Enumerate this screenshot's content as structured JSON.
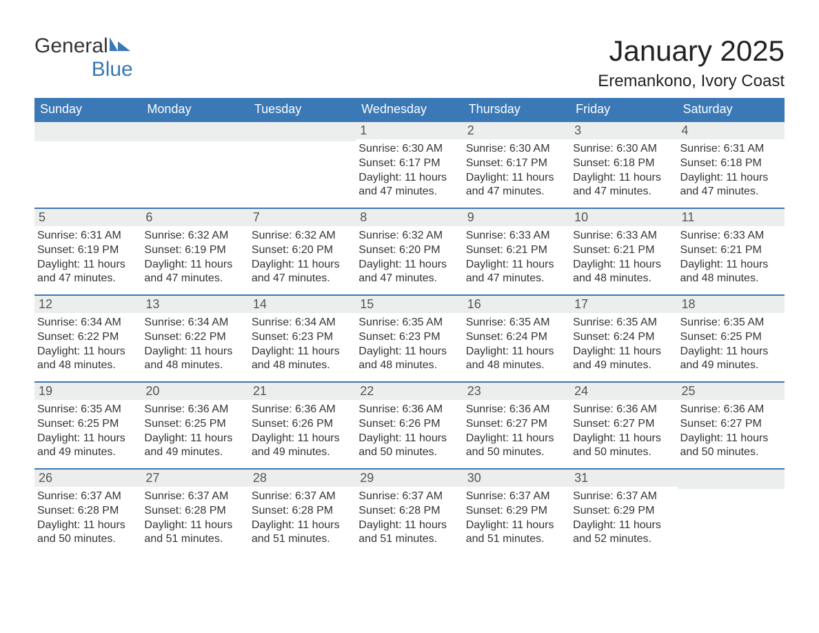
{
  "logo": {
    "text1": "General",
    "text2": "Blue"
  },
  "title": "January 2025",
  "subtitle": "Eremankono, Ivory Coast",
  "colors": {
    "brand": "#3a78b6",
    "daybar": "#eceded",
    "text": "#333333",
    "bg": "#ffffff"
  },
  "weekdays": [
    "Sunday",
    "Monday",
    "Tuesday",
    "Wednesday",
    "Thursday",
    "Friday",
    "Saturday"
  ],
  "weeks": [
    [
      null,
      null,
      null,
      {
        "n": "1",
        "sunrise": "Sunrise: 6:30 AM",
        "sunset": "Sunset: 6:17 PM",
        "dl1": "Daylight: 11 hours",
        "dl2": "and 47 minutes."
      },
      {
        "n": "2",
        "sunrise": "Sunrise: 6:30 AM",
        "sunset": "Sunset: 6:17 PM",
        "dl1": "Daylight: 11 hours",
        "dl2": "and 47 minutes."
      },
      {
        "n": "3",
        "sunrise": "Sunrise: 6:30 AM",
        "sunset": "Sunset: 6:18 PM",
        "dl1": "Daylight: 11 hours",
        "dl2": "and 47 minutes."
      },
      {
        "n": "4",
        "sunrise": "Sunrise: 6:31 AM",
        "sunset": "Sunset: 6:18 PM",
        "dl1": "Daylight: 11 hours",
        "dl2": "and 47 minutes."
      }
    ],
    [
      {
        "n": "5",
        "sunrise": "Sunrise: 6:31 AM",
        "sunset": "Sunset: 6:19 PM",
        "dl1": "Daylight: 11 hours",
        "dl2": "and 47 minutes."
      },
      {
        "n": "6",
        "sunrise": "Sunrise: 6:32 AM",
        "sunset": "Sunset: 6:19 PM",
        "dl1": "Daylight: 11 hours",
        "dl2": "and 47 minutes."
      },
      {
        "n": "7",
        "sunrise": "Sunrise: 6:32 AM",
        "sunset": "Sunset: 6:20 PM",
        "dl1": "Daylight: 11 hours",
        "dl2": "and 47 minutes."
      },
      {
        "n": "8",
        "sunrise": "Sunrise: 6:32 AM",
        "sunset": "Sunset: 6:20 PM",
        "dl1": "Daylight: 11 hours",
        "dl2": "and 47 minutes."
      },
      {
        "n": "9",
        "sunrise": "Sunrise: 6:33 AM",
        "sunset": "Sunset: 6:21 PM",
        "dl1": "Daylight: 11 hours",
        "dl2": "and 47 minutes."
      },
      {
        "n": "10",
        "sunrise": "Sunrise: 6:33 AM",
        "sunset": "Sunset: 6:21 PM",
        "dl1": "Daylight: 11 hours",
        "dl2": "and 48 minutes."
      },
      {
        "n": "11",
        "sunrise": "Sunrise: 6:33 AM",
        "sunset": "Sunset: 6:21 PM",
        "dl1": "Daylight: 11 hours",
        "dl2": "and 48 minutes."
      }
    ],
    [
      {
        "n": "12",
        "sunrise": "Sunrise: 6:34 AM",
        "sunset": "Sunset: 6:22 PM",
        "dl1": "Daylight: 11 hours",
        "dl2": "and 48 minutes."
      },
      {
        "n": "13",
        "sunrise": "Sunrise: 6:34 AM",
        "sunset": "Sunset: 6:22 PM",
        "dl1": "Daylight: 11 hours",
        "dl2": "and 48 minutes."
      },
      {
        "n": "14",
        "sunrise": "Sunrise: 6:34 AM",
        "sunset": "Sunset: 6:23 PM",
        "dl1": "Daylight: 11 hours",
        "dl2": "and 48 minutes."
      },
      {
        "n": "15",
        "sunrise": "Sunrise: 6:35 AM",
        "sunset": "Sunset: 6:23 PM",
        "dl1": "Daylight: 11 hours",
        "dl2": "and 48 minutes."
      },
      {
        "n": "16",
        "sunrise": "Sunrise: 6:35 AM",
        "sunset": "Sunset: 6:24 PM",
        "dl1": "Daylight: 11 hours",
        "dl2": "and 48 minutes."
      },
      {
        "n": "17",
        "sunrise": "Sunrise: 6:35 AM",
        "sunset": "Sunset: 6:24 PM",
        "dl1": "Daylight: 11 hours",
        "dl2": "and 49 minutes."
      },
      {
        "n": "18",
        "sunrise": "Sunrise: 6:35 AM",
        "sunset": "Sunset: 6:25 PM",
        "dl1": "Daylight: 11 hours",
        "dl2": "and 49 minutes."
      }
    ],
    [
      {
        "n": "19",
        "sunrise": "Sunrise: 6:35 AM",
        "sunset": "Sunset: 6:25 PM",
        "dl1": "Daylight: 11 hours",
        "dl2": "and 49 minutes."
      },
      {
        "n": "20",
        "sunrise": "Sunrise: 6:36 AM",
        "sunset": "Sunset: 6:25 PM",
        "dl1": "Daylight: 11 hours",
        "dl2": "and 49 minutes."
      },
      {
        "n": "21",
        "sunrise": "Sunrise: 6:36 AM",
        "sunset": "Sunset: 6:26 PM",
        "dl1": "Daylight: 11 hours",
        "dl2": "and 49 minutes."
      },
      {
        "n": "22",
        "sunrise": "Sunrise: 6:36 AM",
        "sunset": "Sunset: 6:26 PM",
        "dl1": "Daylight: 11 hours",
        "dl2": "and 50 minutes."
      },
      {
        "n": "23",
        "sunrise": "Sunrise: 6:36 AM",
        "sunset": "Sunset: 6:27 PM",
        "dl1": "Daylight: 11 hours",
        "dl2": "and 50 minutes."
      },
      {
        "n": "24",
        "sunrise": "Sunrise: 6:36 AM",
        "sunset": "Sunset: 6:27 PM",
        "dl1": "Daylight: 11 hours",
        "dl2": "and 50 minutes."
      },
      {
        "n": "25",
        "sunrise": "Sunrise: 6:36 AM",
        "sunset": "Sunset: 6:27 PM",
        "dl1": "Daylight: 11 hours",
        "dl2": "and 50 minutes."
      }
    ],
    [
      {
        "n": "26",
        "sunrise": "Sunrise: 6:37 AM",
        "sunset": "Sunset: 6:28 PM",
        "dl1": "Daylight: 11 hours",
        "dl2": "and 50 minutes."
      },
      {
        "n": "27",
        "sunrise": "Sunrise: 6:37 AM",
        "sunset": "Sunset: 6:28 PM",
        "dl1": "Daylight: 11 hours",
        "dl2": "and 51 minutes."
      },
      {
        "n": "28",
        "sunrise": "Sunrise: 6:37 AM",
        "sunset": "Sunset: 6:28 PM",
        "dl1": "Daylight: 11 hours",
        "dl2": "and 51 minutes."
      },
      {
        "n": "29",
        "sunrise": "Sunrise: 6:37 AM",
        "sunset": "Sunset: 6:28 PM",
        "dl1": "Daylight: 11 hours",
        "dl2": "and 51 minutes."
      },
      {
        "n": "30",
        "sunrise": "Sunrise: 6:37 AM",
        "sunset": "Sunset: 6:29 PM",
        "dl1": "Daylight: 11 hours",
        "dl2": "and 51 minutes."
      },
      {
        "n": "31",
        "sunrise": "Sunrise: 6:37 AM",
        "sunset": "Sunset: 6:29 PM",
        "dl1": "Daylight: 11 hours",
        "dl2": "and 52 minutes."
      },
      null
    ]
  ]
}
